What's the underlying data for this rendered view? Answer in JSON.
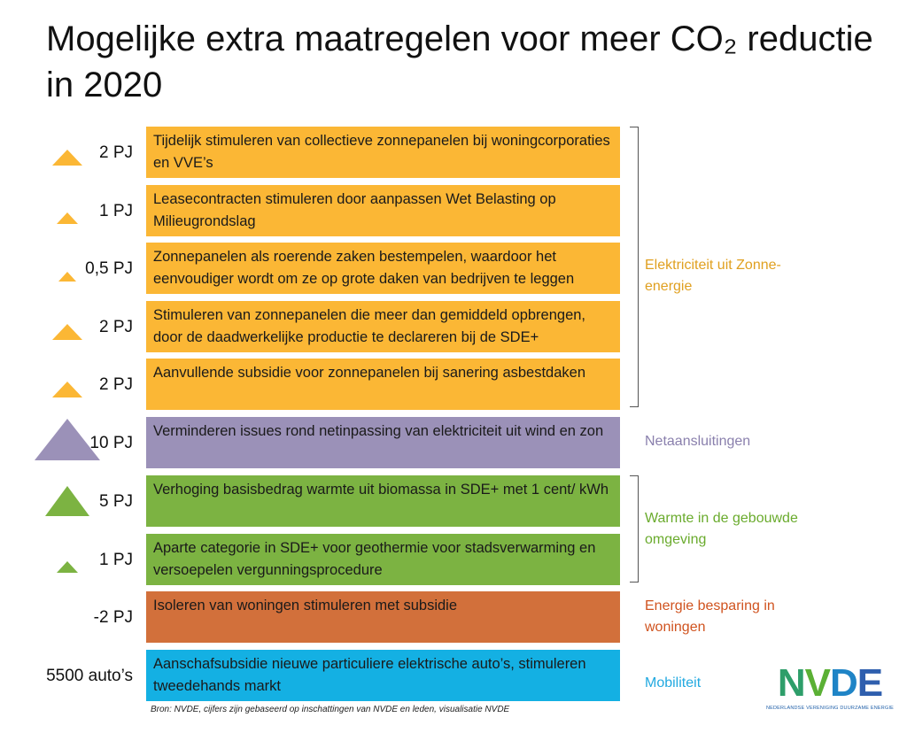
{
  "title": "Mogelijke extra maatregelen voor meer CO₂ reductie in 2020",
  "colors": {
    "solar": "#fbb735",
    "grid": "#9b91b8",
    "heat": "#7cb342",
    "insulation": "#d2703b",
    "mobility": "#14b0e3",
    "solar_text": "#e0a020",
    "grid_text": "#8a80ad",
    "heat_text": "#6aab2d",
    "insulation_text": "#d0531f",
    "mobility_text": "#22a9e0"
  },
  "measures": [
    {
      "amount": "2 PJ",
      "text": "Tijdelijk stimuleren van collectieve zonnepanelen bij woningcorporaties en VVE’s",
      "category": "solar",
      "icon": "triangle-icon"
    },
    {
      "amount": "1 PJ",
      "text": "Leasecontracten stimuleren door aanpassen Wet Belasting op Milieugrondslag",
      "category": "solar",
      "icon": "triangle-icon"
    },
    {
      "amount": "0,5 PJ",
      "text": "Zonnepanelen als roerende zaken bestempelen, waardoor het eenvoudiger wordt om ze op grote daken van bedrijven te leggen",
      "category": "solar",
      "icon": "triangle-icon"
    },
    {
      "amount": "2 PJ",
      "text": "Stimuleren van zonnepanelen die meer dan gemiddeld opbrengen, door de daadwerkelijke productie te declareren bij de SDE+",
      "category": "solar",
      "icon": "triangle-icon"
    },
    {
      "amount": "2 PJ",
      "text": "Aanvullende subsidie voor zonnepanelen bij sanering asbestdaken",
      "category": "solar",
      "icon": "triangle-icon"
    },
    {
      "amount": "10 PJ",
      "text": "Verminderen issues rond netinpassing van elektriciteit uit wind en zon",
      "category": "grid",
      "icon": "triangle-icon"
    },
    {
      "amount": "5 PJ",
      "text": "Verhoging basisbedrag warmte uit biomassa in SDE+ met 1 cent/ kWh",
      "category": "heat",
      "icon": "triangle-icon"
    },
    {
      "amount": "1 PJ",
      "text": "Aparte categorie in SDE+ voor geothermie voor stadsverwarming en versoepelen vergunningsprocedure",
      "category": "heat",
      "icon": "triangle-icon"
    },
    {
      "amount": "-2 PJ",
      "text": "Isoleren van woningen stimuleren met subsidie",
      "category": "insulation",
      "icon": ""
    },
    {
      "amount": "5500 auto’s",
      "text": "Aanschafsubsidie nieuwe particuliere elektrische auto’s, stimuleren tweedehands markt",
      "category": "mobility",
      "icon": ""
    }
  ],
  "categories": [
    {
      "key": "solar",
      "label": "Elektriciteit uit Zonne-energie"
    },
    {
      "key": "grid",
      "label": "Netaansluitingen"
    },
    {
      "key": "heat",
      "label": "Warmte in de gebouwde omgeving"
    },
    {
      "key": "insulation",
      "label": "Energie besparing in woningen"
    },
    {
      "key": "mobility",
      "label": "Mobiliteit"
    }
  ],
  "source": "Bron: NVDE, cijfers zijn gebaseerd op inschattingen van NVDE en leden, visualisatie NVDE",
  "logo": {
    "text": "NVDE",
    "tagline": "NEDERLANDSE VERENIGING DUURZAME ENERGIE"
  }
}
